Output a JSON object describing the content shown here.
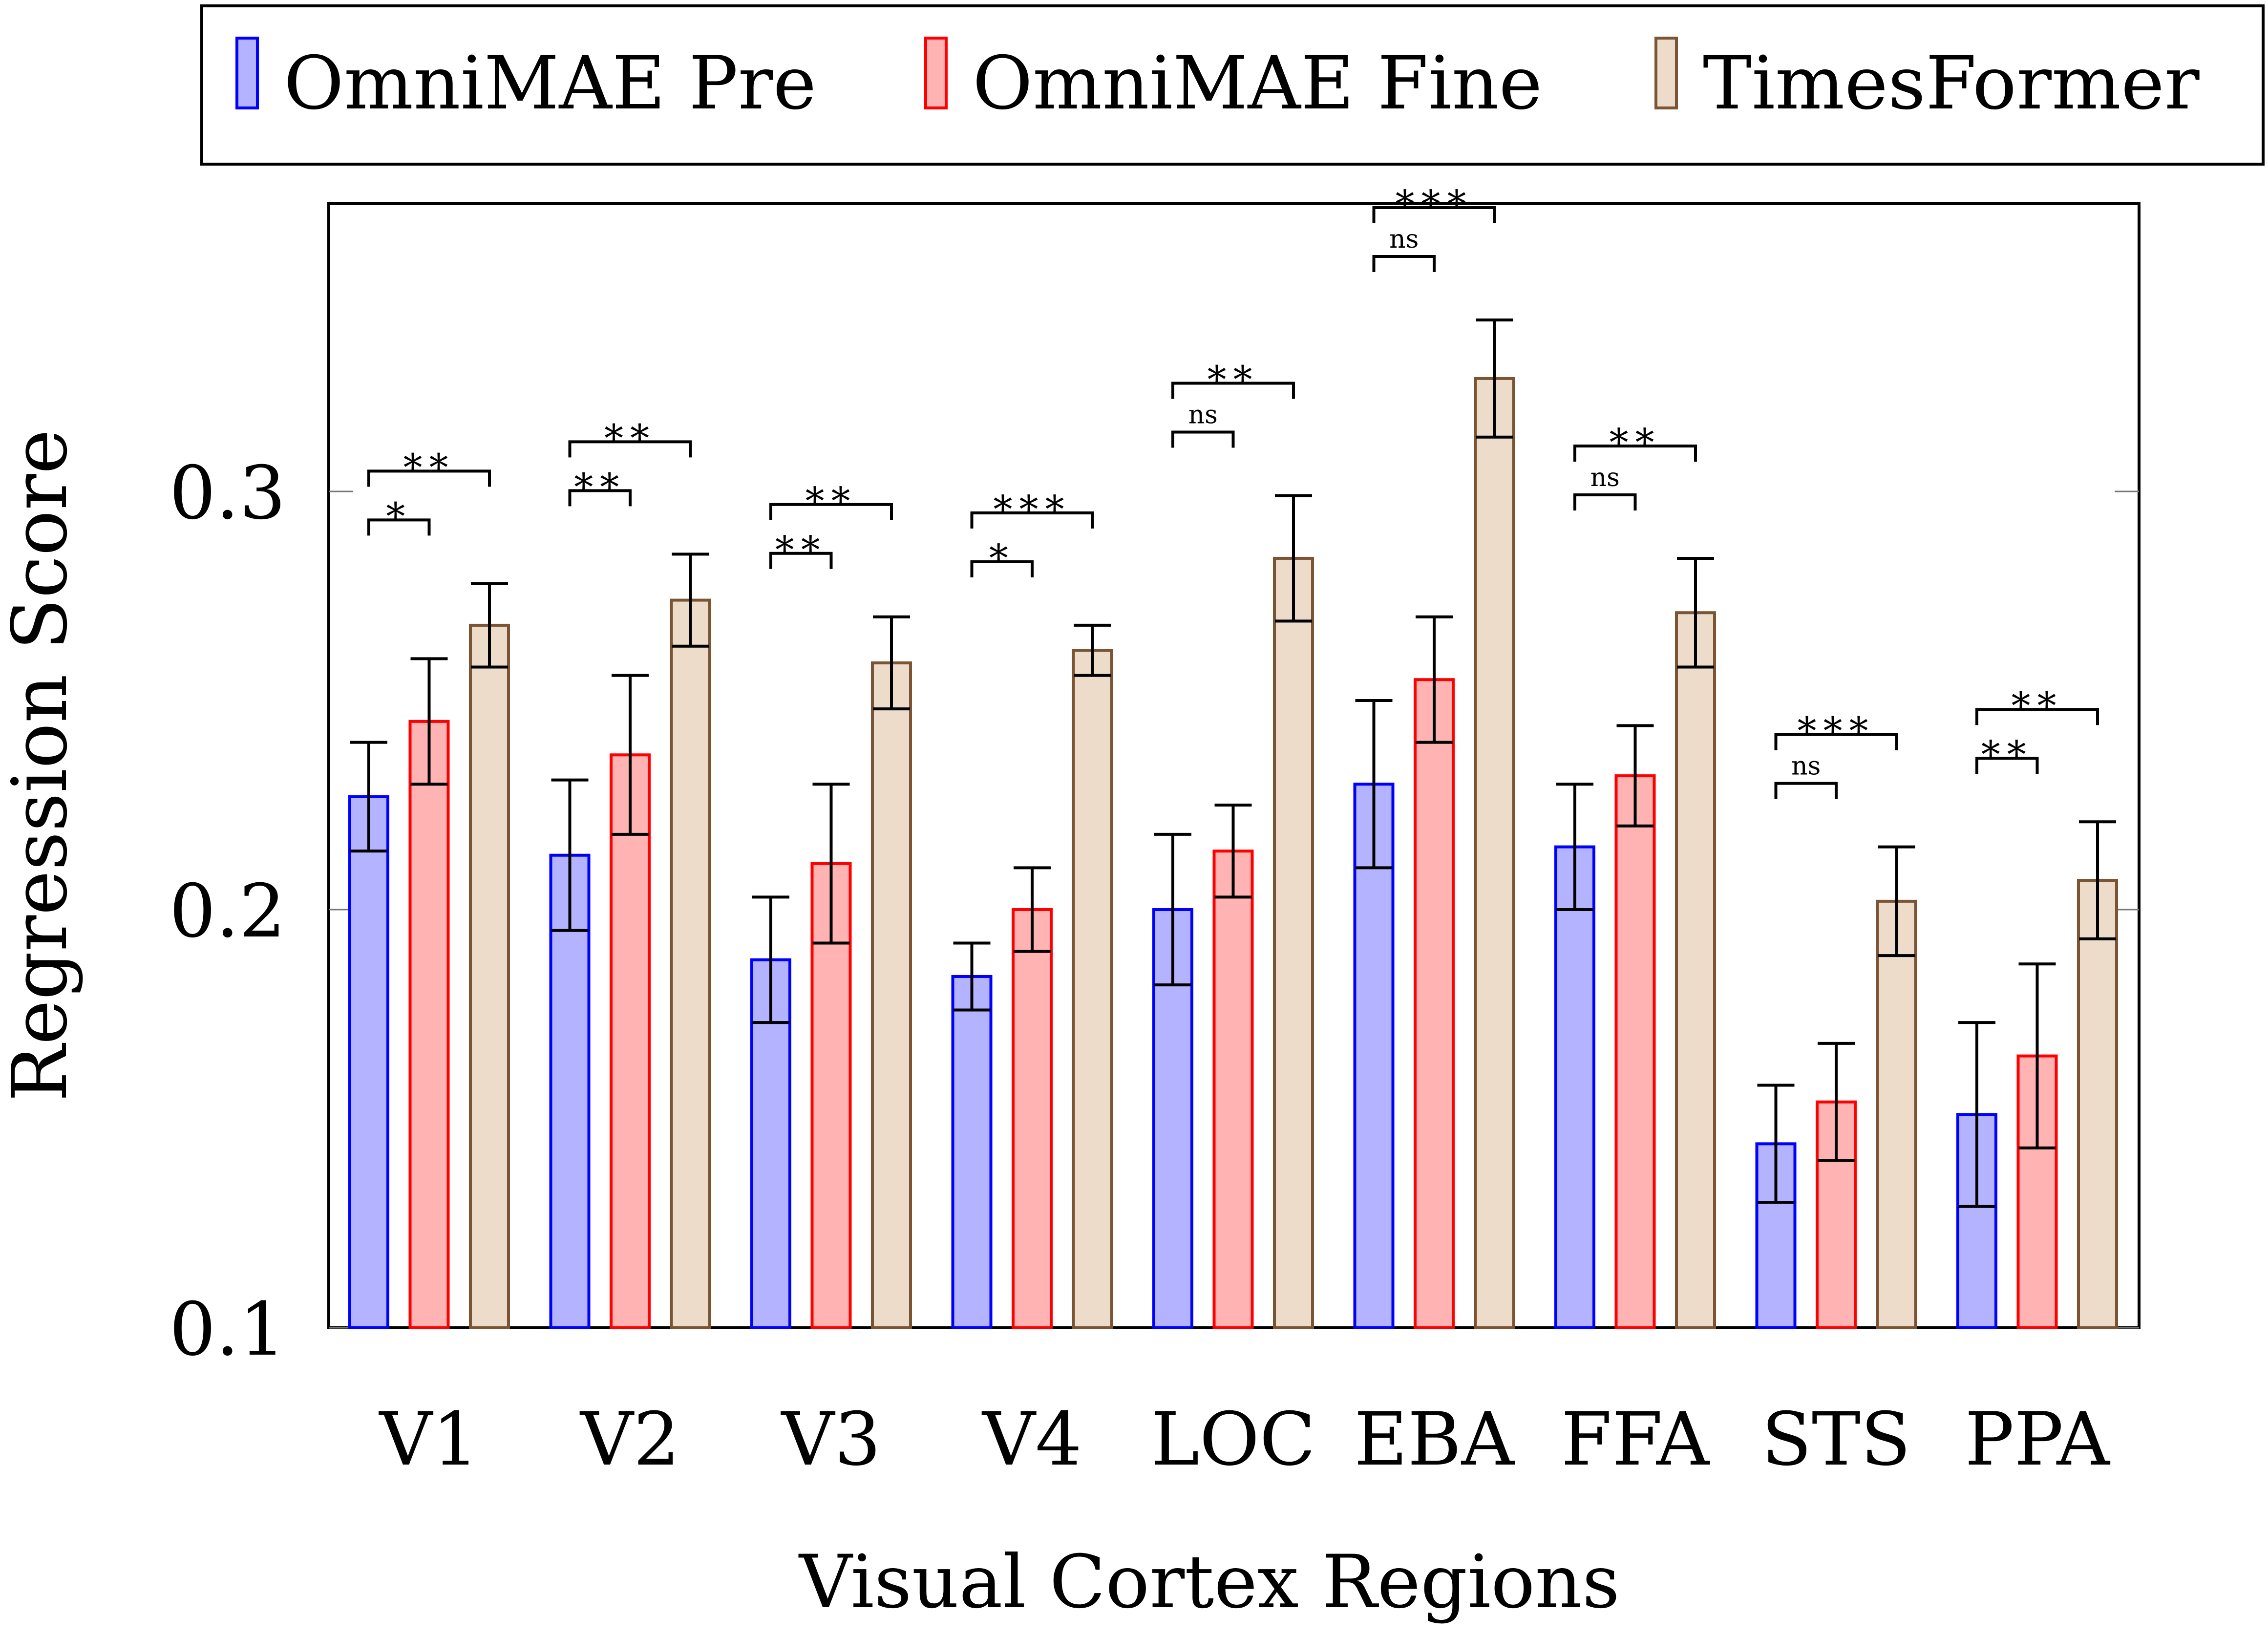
{
  "chart_data": {
    "type": "bar",
    "title": "",
    "xlabel": "Visual Cortex Regions",
    "ylabel": "Regression Score",
    "ylim": [
      0.1,
      0.37
    ],
    "yticks": [
      0.1,
      0.2,
      0.3
    ],
    "ytick_labels": [
      "0.1",
      "0.2",
      "0.3"
    ],
    "grid": false,
    "legend_position": "top",
    "categories": [
      "V1",
      "V2",
      "V3",
      "V4",
      "LOC",
      "EBA",
      "FFA",
      "STS",
      "PPA"
    ],
    "series": [
      {
        "name": "OmniMAE Pre",
        "colors": {
          "fill": "#b3b3ff",
          "stroke": "#0000ff"
        },
        "values": [
          0.227,
          0.213,
          0.188,
          0.184,
          0.2,
          0.23,
          0.215,
          0.144,
          0.151
        ],
        "errors": [
          0.013,
          0.018,
          0.015,
          0.008,
          0.018,
          0.02,
          0.015,
          0.014,
          0.022
        ]
      },
      {
        "name": "OmniMAE Fine",
        "colors": {
          "fill": "#ffb3b3",
          "stroke": "#ff0000"
        },
        "values": [
          0.245,
          0.237,
          0.211,
          0.2,
          0.214,
          0.255,
          0.232,
          0.154,
          0.165
        ],
        "errors": [
          0.015,
          0.019,
          0.019,
          0.01,
          0.011,
          0.015,
          0.012,
          0.014,
          0.022
        ]
      },
      {
        "name": "TimesFormer",
        "colors": {
          "fill": "#ecdcc9",
          "stroke": "#7b5434"
        },
        "values": [
          0.268,
          0.274,
          0.259,
          0.262,
          0.284,
          0.327,
          0.271,
          0.202,
          0.207
        ],
        "errors": [
          0.01,
          0.011,
          0.011,
          0.006,
          0.015,
          0.014,
          0.013,
          0.013,
          0.014
        ]
      }
    ],
    "significance": [
      {
        "category": "V1",
        "pre_vs_fine": "*",
        "pre_vs_times": "**"
      },
      {
        "category": "V2",
        "pre_vs_fine": "**",
        "pre_vs_times": "**"
      },
      {
        "category": "V3",
        "pre_vs_fine": "**",
        "pre_vs_times": "**"
      },
      {
        "category": "V4",
        "pre_vs_fine": "*",
        "pre_vs_times": "***"
      },
      {
        "category": "LOC",
        "pre_vs_fine": "ns",
        "pre_vs_times": "**"
      },
      {
        "category": "EBA",
        "pre_vs_fine": "ns",
        "pre_vs_times": "***"
      },
      {
        "category": "FFA",
        "pre_vs_fine": "ns",
        "pre_vs_times": "**"
      },
      {
        "category": "STS",
        "pre_vs_fine": "ns",
        "pre_vs_times": "***"
      },
      {
        "category": "PPA",
        "pre_vs_fine": "**",
        "pre_vs_times": "**"
      }
    ]
  }
}
